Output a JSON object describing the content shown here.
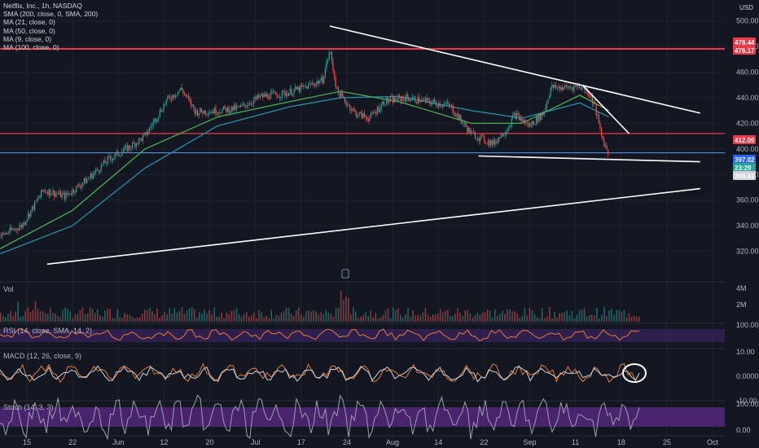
{
  "header": {
    "symbol_line": "Netflix, Inc., 1h, NASDAQ",
    "indicators": [
      "SMA (200, close, 0, SMA, 200)",
      "MA (21, close, 0)",
      "MA (50, close, 0)",
      "MA (9, close, 0)",
      "MA (100, close, 0)"
    ],
    "currency": "USD"
  },
  "panes": {
    "volume_label": "Vol",
    "rsi_label": "RSI (14, close, SMA, 14, 2)",
    "macd_label": "MACD (12, 26, close, 9)",
    "stoch_label": "Stoch (14, 3, 3)"
  },
  "colors": {
    "background": "#131722",
    "bull": "#26a69a",
    "bear": "#ef5350",
    "trendline": "#ffffff",
    "horizontal_red": "#f23645",
    "stoch_band": "#5b2a86",
    "rsi_band": "#3b2460"
  },
  "chart_data": {
    "type": "candlestick",
    "title": "Netflix, Inc., 1h, NASDAQ",
    "ylabel": "USD",
    "ylim": [
      300,
      510
    ],
    "y_ticks": [
      320,
      340,
      360,
      380,
      400,
      420,
      440,
      460,
      480,
      500
    ],
    "x_ticks": [
      "15",
      "22",
      "Jun",
      "12",
      "20",
      "Jul",
      "17",
      "24",
      "Aug",
      "14",
      "22",
      "Sep",
      "11",
      "18",
      "25",
      "Oct"
    ],
    "price_tags": [
      {
        "value": 478.44,
        "label": "478.44"
      },
      {
        "value": 476.17,
        "label": "476.17"
      },
      {
        "value": 412.09,
        "label": "412.09"
      },
      {
        "value": 397.02,
        "label": "397.02"
      },
      {
        "value": 393.9,
        "label": "23:29"
      },
      {
        "value": 394.41,
        "label": "394.41"
      }
    ],
    "horizontal_lines": [
      478.17,
      412.09,
      397.02
    ],
    "trendlines": [
      {
        "from": [
          0.455,
          496
        ],
        "to": [
          0.966,
          428
        ]
      },
      {
        "from": [
          0.805,
          449
        ],
        "to": [
          0.868,
          412
        ]
      },
      {
        "from": [
          0.66,
          394.5
        ],
        "to": [
          0.966,
          390
        ]
      },
      {
        "from": [
          0.065,
          310
        ],
        "to": [
          0.966,
          369
        ]
      }
    ],
    "price_path": [
      [
        0.0,
        332
      ],
      [
        0.03,
        340
      ],
      [
        0.06,
        368
      ],
      [
        0.09,
        363
      ],
      [
        0.12,
        376
      ],
      [
        0.15,
        392
      ],
      [
        0.18,
        402
      ],
      [
        0.2,
        410
      ],
      [
        0.23,
        438
      ],
      [
        0.25,
        447
      ],
      [
        0.27,
        429
      ],
      [
        0.3,
        430
      ],
      [
        0.33,
        432
      ],
      [
        0.36,
        441
      ],
      [
        0.39,
        443
      ],
      [
        0.42,
        448
      ],
      [
        0.445,
        454
      ],
      [
        0.455,
        477
      ],
      [
        0.465,
        445
      ],
      [
        0.49,
        428
      ],
      [
        0.51,
        424
      ],
      [
        0.53,
        437
      ],
      [
        0.56,
        440
      ],
      [
        0.59,
        437
      ],
      [
        0.62,
        434
      ],
      [
        0.65,
        412
      ],
      [
        0.68,
        404
      ],
      [
        0.7,
        416
      ],
      [
        0.71,
        427
      ],
      [
        0.73,
        418
      ],
      [
        0.75,
        428
      ],
      [
        0.76,
        448
      ],
      [
        0.78,
        448
      ],
      [
        0.8,
        449
      ],
      [
        0.81,
        446
      ],
      [
        0.82,
        435
      ],
      [
        0.83,
        410
      ],
      [
        0.84,
        395
      ]
    ],
    "ma_paths": [
      {
        "name": "MA (100, close, 0)",
        "color": "#2a8fa8",
        "points": [
          [
            0.0,
            318
          ],
          [
            0.1,
            340
          ],
          [
            0.2,
            385
          ],
          [
            0.3,
            418
          ],
          [
            0.4,
            433
          ],
          [
            0.47,
            440
          ],
          [
            0.55,
            441
          ],
          [
            0.65,
            430
          ],
          [
            0.72,
            424
          ],
          [
            0.8,
            436
          ],
          [
            0.84,
            425
          ]
        ]
      },
      {
        "name": "MA (50, close, 0)",
        "color": "#4caf50",
        "points": [
          [
            0.0,
            322
          ],
          [
            0.1,
            352
          ],
          [
            0.2,
            400
          ],
          [
            0.3,
            425
          ],
          [
            0.4,
            437
          ],
          [
            0.47,
            445
          ],
          [
            0.55,
            437
          ],
          [
            0.65,
            420
          ],
          [
            0.72,
            420
          ],
          [
            0.8,
            442
          ],
          [
            0.84,
            430
          ]
        ]
      }
    ],
    "panes": [
      "Vol",
      "RSI (14, close, SMA, 14, 2)",
      "MACD (12, 26, close, 9)",
      "Stoch (14, 3, 3)"
    ],
    "vol_ticks": [
      "4M",
      "2M"
    ],
    "rsi_ticks": [
      "100.00"
    ],
    "macd_ticks": [
      "10.00",
      "0.0000",
      "-10.00"
    ],
    "stoch_ticks": [
      "100.00",
      "0.00"
    ]
  }
}
